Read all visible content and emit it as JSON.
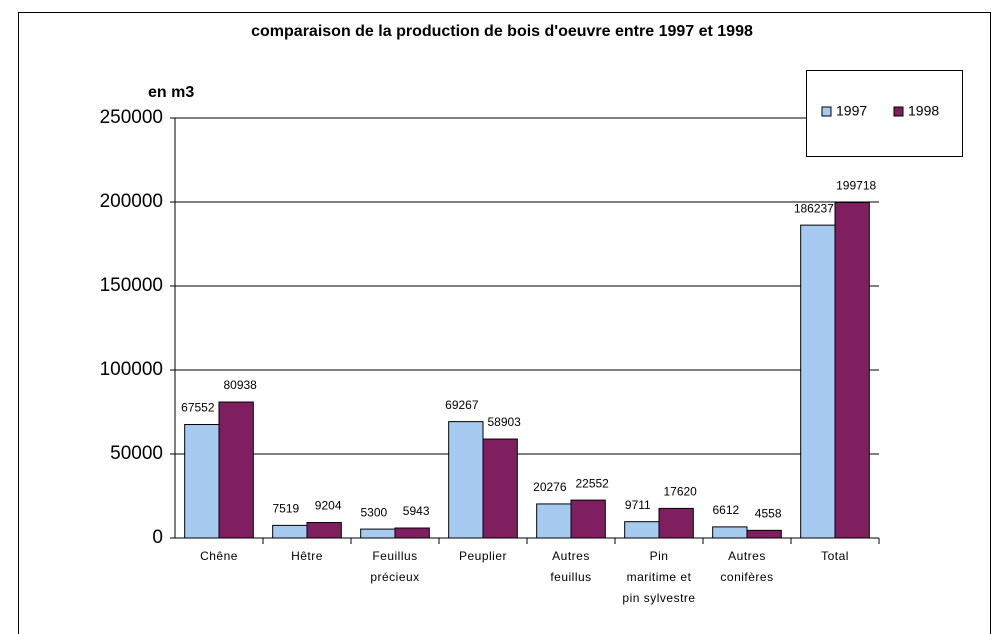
{
  "chart_data": {
    "type": "bar",
    "title": "comparaison de la production de bois d'oeuvre entre 1997 et 1998",
    "y_label": "en m3",
    "categories": [
      "Chêne",
      "Hêtre",
      "Feuillus\nprécieux",
      "Peuplier",
      "Autres\nfeuillus",
      "Pin\nmaritime et\npin sylvestre",
      "Autres\nconifères",
      "Total"
    ],
    "series": [
      {
        "name": "1997",
        "color": "#a6caf0",
        "values": [
          67552,
          7519,
          5300,
          69267,
          20276,
          9711,
          6612,
          186237
        ]
      },
      {
        "name": "1998",
        "color": "#801f5f",
        "values": [
          80938,
          9204,
          5943,
          58903,
          22552,
          17620,
          4558,
          199718
        ]
      }
    ],
    "ylim": [
      0,
      250000
    ],
    "yticks": [
      0,
      50000,
      100000,
      150000,
      200000,
      250000
    ],
    "grid": true,
    "legend": "top-right"
  }
}
